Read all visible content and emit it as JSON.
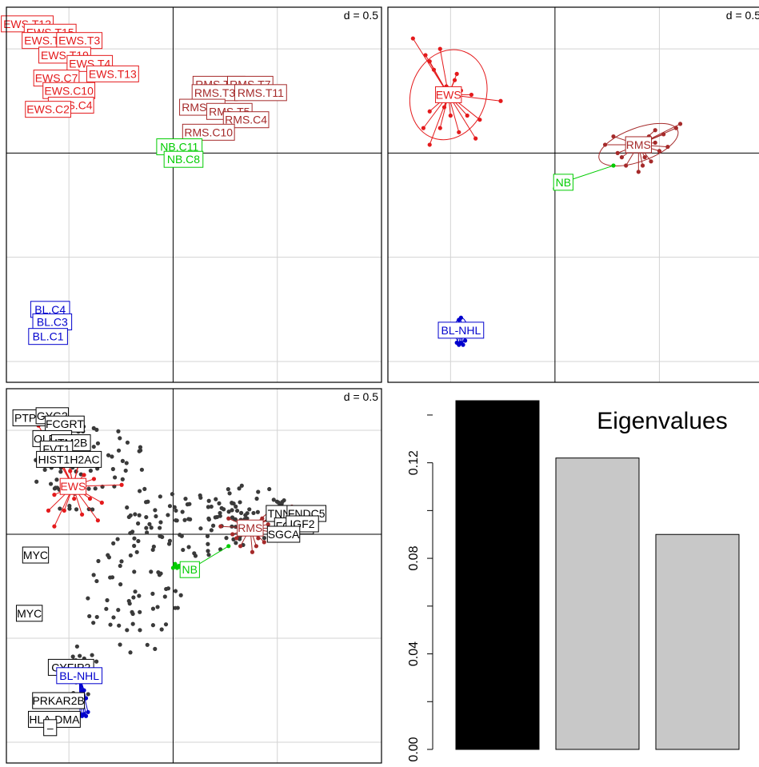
{
  "colors": {
    "EWS": "#e41a1c",
    "RMS": "#a52a2a",
    "NB": "#00cc00",
    "BL": "#0000cd",
    "genes": "#000000",
    "points": "#3a3a3a",
    "bar_first": "#000000",
    "bar_rest": "#c8c8c8",
    "grid": "#d3d3d3"
  },
  "chart_data": [
    {
      "type": "scatter",
      "title": "",
      "scale_label": "d = 0.5",
      "grid_step": 0.5,
      "xlim": [
        -0.8,
        1.0
      ],
      "ylim": [
        -1.1,
        0.7
      ],
      "labels": [
        {
          "text": "EWS.T12",
          "x": -0.7,
          "y": 0.62,
          "group": "EWS"
        },
        {
          "text": "EWS.T15",
          "x": -0.59,
          "y": 0.58,
          "group": "EWS"
        },
        {
          "text": "EWS.T14",
          "x": -0.6,
          "y": 0.54,
          "group": "EWS"
        },
        {
          "text": "EWS.T3",
          "x": -0.45,
          "y": 0.54,
          "group": "EWS"
        },
        {
          "text": "EWS.T19",
          "x": -0.52,
          "y": 0.47,
          "group": "EWS"
        },
        {
          "text": "EWS.T4",
          "x": -0.4,
          "y": 0.43,
          "group": "EWS"
        },
        {
          "text": "EWS.T13",
          "x": -0.29,
          "y": 0.38,
          "group": "EWS"
        },
        {
          "text": "EWS.C7",
          "x": -0.56,
          "y": 0.36,
          "group": "EWS"
        },
        {
          "text": "EWS.C10",
          "x": -0.5,
          "y": 0.3,
          "group": "EWS"
        },
        {
          "text": "EWS.C4",
          "x": -0.49,
          "y": 0.23,
          "group": "EWS"
        },
        {
          "text": "EWS.C2",
          "x": -0.6,
          "y": 0.21,
          "group": "EWS"
        },
        {
          "text": "RMS.T10",
          "x": 0.22,
          "y": 0.33,
          "group": "RMS"
        },
        {
          "text": "RMS.T7",
          "x": 0.37,
          "y": 0.33,
          "group": "RMS"
        },
        {
          "text": "RMS.T3",
          "x": 0.2,
          "y": 0.29,
          "group": "RMS"
        },
        {
          "text": "RMS.T11",
          "x": 0.42,
          "y": 0.29,
          "group": "RMS"
        },
        {
          "text": "RMS.T9",
          "x": 0.14,
          "y": 0.22,
          "group": "RMS"
        },
        {
          "text": "RMS.T5",
          "x": 0.27,
          "y": 0.2,
          "group": "RMS"
        },
        {
          "text": "RMS.C4",
          "x": 0.35,
          "y": 0.16,
          "group": "RMS"
        },
        {
          "text": "RMS.C10",
          "x": 0.17,
          "y": 0.1,
          "group": "RMS"
        },
        {
          "text": "NB.C11",
          "x": 0.03,
          "y": 0.03,
          "group": "NB"
        },
        {
          "text": "NB.C8",
          "x": 0.05,
          "y": -0.03,
          "group": "NB"
        },
        {
          "text": "BL.C4",
          "x": -0.59,
          "y": -0.75,
          "group": "BL"
        },
        {
          "text": "BL.C3",
          "x": -0.58,
          "y": -0.81,
          "group": "BL"
        },
        {
          "text": "BL.C1",
          "x": -0.6,
          "y": -0.88,
          "group": "BL"
        }
      ]
    },
    {
      "type": "scatter",
      "title": "",
      "scale_label": "d = 0.5",
      "grid_step": 0.5,
      "xlim": [
        -0.8,
        1.0
      ],
      "ylim": [
        -1.1,
        0.7
      ],
      "groups": [
        {
          "name": "EWS",
          "center": [
            -0.51,
            0.28
          ],
          "ellipse": {
            "rx": 0.18,
            "ry": 0.22,
            "angle": -0.35
          },
          "points": [
            [
              -0.68,
              0.55
            ],
            [
              -0.62,
              0.47
            ],
            [
              -0.6,
              0.44
            ],
            [
              -0.55,
              0.5
            ],
            [
              -0.58,
              0.4
            ],
            [
              -0.48,
              0.35
            ],
            [
              -0.47,
              0.38
            ],
            [
              -0.52,
              0.32
            ],
            [
              -0.56,
              0.27
            ],
            [
              -0.6,
              0.2
            ],
            [
              -0.63,
              0.12
            ],
            [
              -0.6,
              0.04
            ],
            [
              -0.55,
              0.12
            ],
            [
              -0.5,
              0.18
            ],
            [
              -0.48,
              0.25
            ],
            [
              -0.45,
              0.3
            ],
            [
              -0.4,
              0.28
            ],
            [
              -0.42,
              0.18
            ],
            [
              -0.46,
              0.1
            ],
            [
              -0.38,
              0.07
            ],
            [
              -0.36,
              0.16
            ],
            [
              -0.53,
              0.22
            ],
            [
              -0.26,
              0.25
            ]
          ]
        },
        {
          "name": "RMS",
          "center": [
            0.4,
            0.04
          ],
          "ellipse": {
            "rx": 0.2,
            "ry": 0.08,
            "angle": 0.35
          },
          "points": [
            [
              0.24,
              0.04
            ],
            [
              0.28,
              0.08
            ],
            [
              0.3,
              0.0
            ],
            [
              0.34,
              -0.06
            ],
            [
              0.4,
              -0.09
            ],
            [
              0.42,
              -0.06
            ],
            [
              0.46,
              -0.04
            ],
            [
              0.5,
              0.01
            ],
            [
              0.48,
              0.05
            ],
            [
              0.52,
              0.09
            ],
            [
              0.58,
              0.12
            ],
            [
              0.6,
              0.14
            ],
            [
              0.54,
              0.03
            ],
            [
              0.45,
              0.08
            ],
            [
              0.36,
              0.06
            ],
            [
              0.32,
              -0.02
            ],
            [
              0.43,
              -0.02
            ],
            [
              0.48,
              0.11
            ]
          ]
        },
        {
          "name": "NB",
          "center": [
            0.04,
            -0.14
          ],
          "ellipse": {
            "rx": 0.04,
            "ry": 0.03,
            "angle": 0.3
          },
          "points": [
            [
              0.0,
              -0.17
            ],
            [
              0.01,
              -0.16
            ],
            [
              0.02,
              -0.17
            ],
            [
              0.03,
              -0.16
            ],
            [
              0.01,
              -0.15
            ],
            [
              0.28,
              -0.06
            ]
          ]
        },
        {
          "name": "BL-NHL",
          "center": [
            -0.45,
            -0.85
          ],
          "ellipse": {
            "rx": 0.03,
            "ry": 0.06,
            "angle": 0
          },
          "points": [
            [
              -0.46,
              -0.92
            ],
            [
              -0.45,
              -0.91
            ],
            [
              -0.44,
              -0.92
            ],
            [
              -0.46,
              -0.8
            ],
            [
              -0.45,
              -0.79
            ],
            [
              -0.44,
              -0.83
            ],
            [
              -0.43,
              -0.9
            ],
            [
              -0.47,
              -0.91
            ]
          ]
        }
      ]
    },
    {
      "type": "scatter",
      "title": "",
      "scale_label": "d = 0.5",
      "grid_step": 0.5,
      "xlim": [
        -0.8,
        1.0
      ],
      "ylim": [
        -1.1,
        0.7
      ],
      "gene_labels": [
        {
          "text": "PTPN13",
          "x": -0.66,
          "y": 0.56
        },
        {
          "text": "GYG2",
          "x": -0.58,
          "y": 0.57
        },
        {
          "text": "FCGRT",
          "x": -0.52,
          "y": 0.53
        },
        {
          "text": "OLFM1",
          "x": -0.58,
          "y": 0.46
        },
        {
          "text": "ITM2B",
          "x": -0.49,
          "y": 0.44
        },
        {
          "text": "FVT1",
          "x": -0.56,
          "y": 0.41
        },
        {
          "text": "HIST1H2AC",
          "x": -0.5,
          "y": 0.36
        },
        {
          "text": "TNNT1",
          "x": 0.54,
          "y": 0.1
        },
        {
          "text": "FNDC5",
          "x": 0.64,
          "y": 0.1
        },
        {
          "text": "FGFR4",
          "x": 0.58,
          "y": 0.04
        },
        {
          "text": "IGF2",
          "x": 0.62,
          "y": 0.05
        },
        {
          "text": "SGCA",
          "x": 0.53,
          "y": 0.0
        },
        {
          "text": "MYC",
          "x": -0.66,
          "y": -0.1
        },
        {
          "text": "MYC",
          "x": -0.69,
          "y": -0.38
        },
        {
          "text": "CYFIP2",
          "x": -0.49,
          "y": -0.64
        },
        {
          "text": "PRKAR2B",
          "x": -0.55,
          "y": -0.8
        },
        {
          "text": "HLA-DMA",
          "x": -0.57,
          "y": -0.89
        },
        {
          "text": "–",
          "x": -0.59,
          "y": -0.93
        }
      ],
      "group_labels": [
        {
          "text": "EWS",
          "x": -0.48,
          "y": 0.23,
          "group": "EWS"
        },
        {
          "text": "RMS",
          "x": 0.37,
          "y": 0.03,
          "group": "RMS"
        },
        {
          "text": "NB",
          "x": 0.08,
          "y": -0.17,
          "group": "NB"
        },
        {
          "text": "BL-NHL",
          "x": -0.45,
          "y": -0.68,
          "group": "BL"
        }
      ]
    },
    {
      "type": "bar",
      "title": "Eigenvalues",
      "values": [
        0.146,
        0.122,
        0.09
      ],
      "ylim": [
        0,
        0.146
      ],
      "yticks": [
        "0.00",
        "0.04",
        "0.08",
        "0.12"
      ],
      "ytick_values": [
        0.0,
        0.04,
        0.08,
        0.12
      ]
    }
  ]
}
